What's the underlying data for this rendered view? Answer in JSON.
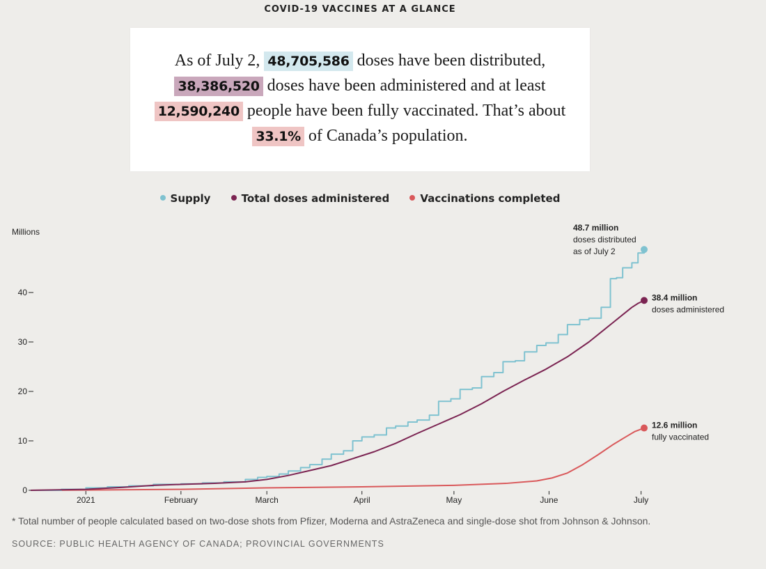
{
  "title": "COVID-19 VACCINES AT A GLANCE",
  "summary": {
    "part1": "As of July 2, ",
    "supply_value": "48,705,586",
    "part2": " doses have been distributed,",
    "admin_value": "38,386,520",
    "part3": " doses have been administered and at least",
    "full_value": "12,590,240",
    "part4": " people have been fully vaccinated. That’s about",
    "pct_value": "33.1%",
    "part5": " of Canada’s population."
  },
  "footnote": "* Total number of people calculated based on two-dose shots from Pfizer, Moderna and AstraZeneca and single-dose shot from Johnson & Johnson.",
  "source": "SOURCE: PUBLIC HEALTH AGENCY OF CANADA; PROVINCIAL GOVERNMENTS",
  "chart_data": {
    "type": "line",
    "title": "COVID-19 VACCINES AT A GLANCE",
    "xlabel": "",
    "ylabel": "Millions",
    "x_unit": "days since 2020-12-14",
    "xlim": [
      0,
      200
    ],
    "ylim": [
      0,
      50
    ],
    "yticks": [
      0,
      10,
      20,
      30,
      40
    ],
    "ytick_labels": [
      "0",
      "10 –",
      "20 –",
      "30 –",
      "40 –"
    ],
    "xticks": [
      {
        "day": 18,
        "label": "2021"
      },
      {
        "day": 49,
        "label": "February"
      },
      {
        "day": 77,
        "label": "March"
      },
      {
        "day": 108,
        "label": "April"
      },
      {
        "day": 138,
        "label": "May"
      },
      {
        "day": 169,
        "label": "June"
      },
      {
        "day": 199,
        "label": "July"
      }
    ],
    "legend": "top-center",
    "grid": false,
    "series": [
      {
        "name": "Supply",
        "color": "#7fc2d0",
        "step": true,
        "x": [
          0,
          10,
          18,
          25,
          32,
          40,
          49,
          56,
          63,
          70,
          74,
          77,
          81,
          84,
          88,
          91,
          95,
          98,
          102,
          105,
          108,
          112,
          116,
          119,
          123,
          126,
          130,
          133,
          137,
          140,
          144,
          147,
          151,
          154,
          158,
          161,
          165,
          168,
          172,
          175,
          179,
          182,
          186,
          189,
          191,
          193,
          196,
          198,
          200
        ],
        "y": [
          0,
          0.2,
          0.5,
          0.7,
          0.9,
          1.2,
          1.3,
          1.5,
          1.7,
          2.2,
          2.6,
          2.8,
          3.3,
          3.9,
          4.6,
          5.2,
          6.3,
          7.3,
          8.0,
          10.0,
          10.8,
          11.2,
          12.6,
          13.0,
          13.8,
          14.2,
          15.2,
          18.0,
          18.5,
          20.4,
          20.7,
          23.0,
          23.8,
          26.0,
          26.2,
          28.0,
          29.3,
          29.8,
          31.5,
          33.5,
          34.5,
          34.8,
          37.0,
          42.8,
          43.0,
          45.0,
          46.0,
          48.0,
          48.7
        ]
      },
      {
        "name": "Total doses administered",
        "color": "#7b2452",
        "step": false,
        "x": [
          0,
          10,
          18,
          30,
          40,
          49,
          60,
          70,
          77,
          84,
          91,
          98,
          105,
          112,
          119,
          126,
          133,
          140,
          147,
          154,
          161,
          168,
          175,
          182,
          186,
          190,
          193,
          196,
          198,
          200
        ],
        "y": [
          0,
          0.1,
          0.2,
          0.6,
          1.0,
          1.2,
          1.4,
          1.7,
          2.2,
          3.0,
          4.0,
          5.0,
          6.4,
          7.8,
          9.5,
          11.5,
          13.4,
          15.3,
          17.5,
          20.0,
          22.3,
          24.5,
          27.0,
          30.0,
          32.0,
          34.0,
          35.5,
          37.0,
          37.8,
          38.4
        ]
      },
      {
        "name": "Vaccinations completed",
        "color": "#d9585a",
        "step": false,
        "x": [
          0,
          18,
          49,
          77,
          108,
          138,
          155,
          165,
          170,
          175,
          180,
          185,
          190,
          194,
          197,
          200
        ],
        "y": [
          0,
          0.05,
          0.2,
          0.5,
          0.7,
          1.0,
          1.4,
          1.9,
          2.5,
          3.5,
          5.2,
          7.2,
          9.3,
          10.8,
          11.9,
          12.6
        ]
      }
    ],
    "annotations": [
      {
        "series": "Supply",
        "bold": "48.7 million",
        "lines": [
          "doses distributed",
          "as of July 2"
        ]
      },
      {
        "series": "Total doses administered",
        "bold": "38.4 million",
        "lines": [
          "doses administered"
        ]
      },
      {
        "series": "Vaccinations completed",
        "bold": "12.6 million",
        "lines": [
          "fully vaccinated"
        ]
      }
    ]
  }
}
